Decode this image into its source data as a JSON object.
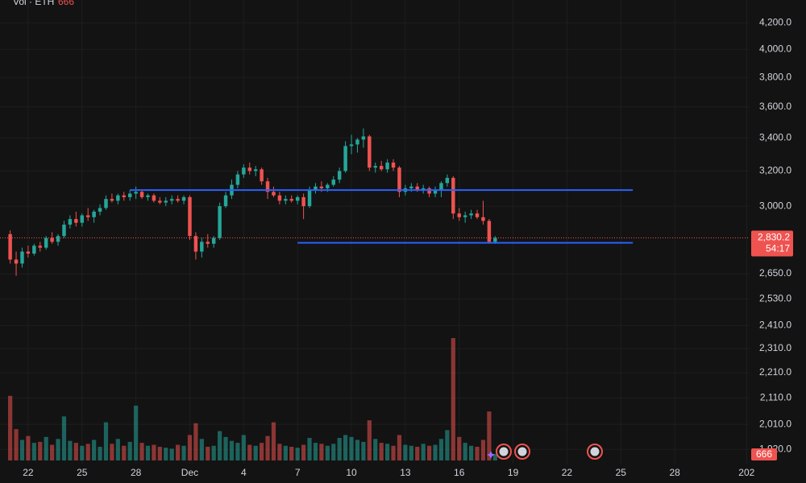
{
  "chart_data": {
    "type": "candlestick",
    "log_scale": true,
    "grid": true,
    "volume_title": "Vol · ETH",
    "up_color": "#26a69a",
    "down_color": "#ef5350",
    "x": [
      0,
      1,
      2,
      3,
      4,
      5,
      6,
      7,
      8,
      9,
      10,
      11,
      12,
      13,
      14,
      15,
      16,
      17,
      18,
      19,
      20,
      21,
      22,
      23,
      24,
      25,
      26,
      27,
      28,
      29,
      30,
      31,
      32,
      33,
      34,
      35,
      36,
      37,
      38,
      39,
      40,
      41,
      42,
      43,
      44,
      45,
      46,
      47,
      48,
      49,
      50,
      51,
      52,
      53,
      54,
      55,
      56,
      57,
      58,
      59,
      60,
      61,
      62,
      63,
      64,
      65,
      66,
      67,
      68,
      69,
      70,
      71,
      72,
      73,
      74,
      75,
      76,
      77,
      78,
      79,
      80,
      81
    ],
    "open": [
      2850,
      2720,
      2700,
      2760,
      2750,
      2790,
      2780,
      2830,
      2810,
      2840,
      2900,
      2930,
      2910,
      2950,
      2940,
      2970,
      2990,
      3040,
      3030,
      3060,
      3050,
      3070,
      3080,
      3050,
      3060,
      3030,
      3020,
      3030,
      3040,
      3030,
      3050,
      2840,
      2760,
      2810,
      2800,
      2830,
      3000,
      3060,
      3120,
      3180,
      3220,
      3200,
      3210,
      3140,
      3080,
      3060,
      3030,
      3040,
      3030,
      3050,
      3000,
      3090,
      3110,
      3100,
      3120,
      3150,
      3200,
      3350,
      3360,
      3390,
      3410,
      3220,
      3230,
      3210,
      3250,
      3220,
      3080,
      3100,
      3110,
      3090,
      3100,
      3070,
      3090,
      3130,
      3160,
      2960,
      2940,
      2950,
      2960,
      2940,
      2920,
      2810
    ],
    "high": [
      2870,
      2760,
      2780,
      2790,
      2800,
      2810,
      2840,
      2860,
      2850,
      2920,
      2950,
      2970,
      2960,
      2990,
      2980,
      3010,
      3060,
      3070,
      3070,
      3080,
      3090,
      3110,
      3090,
      3070,
      3070,
      3050,
      3050,
      3060,
      3060,
      3060,
      3060,
      2860,
      2830,
      2850,
      2840,
      3020,
      3080,
      3150,
      3200,
      3240,
      3250,
      3230,
      3220,
      3160,
      3110,
      3080,
      3060,
      3060,
      3060,
      3070,
      3110,
      3130,
      3140,
      3130,
      3170,
      3220,
      3380,
      3420,
      3400,
      3460,
      3420,
      3250,
      3260,
      3270,
      3270,
      3230,
      3120,
      3130,
      3130,
      3120,
      3110,
      3110,
      3140,
      3180,
      3170,
      2990,
      2970,
      2980,
      2980,
      3030,
      2930,
      2840
    ],
    "low": [
      2700,
      2640,
      2680,
      2730,
      2740,
      2760,
      2770,
      2800,
      2790,
      2830,
      2880,
      2890,
      2890,
      2920,
      2910,
      2950,
      2980,
      3020,
      3010,
      3030,
      3030,
      3040,
      3040,
      3030,
      3020,
      3010,
      3000,
      3010,
      3020,
      3010,
      2820,
      2720,
      2730,
      2780,
      2780,
      2820,
      2990,
      3040,
      3100,
      3160,
      3180,
      3170,
      3120,
      3040,
      3050,
      3010,
      3010,
      3020,
      3010,
      2930,
      2990,
      3070,
      3080,
      3080,
      3110,
      3130,
      3190,
      3300,
      3310,
      3340,
      3200,
      3190,
      3200,
      3190,
      3200,
      3050,
      3060,
      3080,
      3080,
      3070,
      3050,
      3050,
      3050,
      3110,
      2930,
      2920,
      2910,
      2930,
      2930,
      2900,
      2800,
      2800
    ],
    "close": [
      2720,
      2700,
      2760,
      2750,
      2790,
      2780,
      2830,
      2810,
      2840,
      2900,
      2930,
      2910,
      2950,
      2940,
      2970,
      2990,
      3040,
      3030,
      3060,
      3050,
      3070,
      3080,
      3050,
      3060,
      3030,
      3020,
      3030,
      3040,
      3030,
      3050,
      2840,
      2760,
      2810,
      2800,
      2830,
      3000,
      3060,
      3120,
      3180,
      3220,
      3200,
      3210,
      3140,
      3080,
      3060,
      3030,
      3040,
      3030,
      3050,
      3000,
      3090,
      3110,
      3100,
      3120,
      3150,
      3200,
      3350,
      3360,
      3390,
      3410,
      3220,
      3230,
      3210,
      3250,
      3220,
      3080,
      3100,
      3110,
      3090,
      3100,
      3070,
      3090,
      3130,
      3160,
      2960,
      2940,
      2950,
      2960,
      2940,
      2920,
      2810,
      2830.2
    ],
    "volume": [
      6600,
      3200,
      2100,
      2500,
      1800,
      1900,
      2400,
      1600,
      2200,
      4500,
      2000,
      1800,
      1500,
      1700,
      2100,
      1400,
      3900,
      1700,
      2200,
      1500,
      1900,
      5600,
      1800,
      1500,
      1600,
      1400,
      1300,
      1200,
      1600,
      1500,
      2600,
      3800,
      2200,
      1400,
      1500,
      3000,
      2400,
      2000,
      1800,
      2600,
      1600,
      1500,
      1800,
      2500,
      3900,
      1700,
      1500,
      1400,
      1300,
      1600,
      2300,
      1800,
      1700,
      1500,
      1700,
      2300,
      2600,
      2400,
      2100,
      1900,
      4100,
      2200,
      1800,
      1700,
      1500,
      2600,
      1600,
      1500,
      1400,
      1700,
      1500,
      1600,
      2200,
      3100,
      12500,
      2400,
      1800,
      1500,
      1400,
      2100,
      5000,
      666
    ],
    "levels": [
      {
        "value": 3090,
        "from": 20,
        "to": 104,
        "color": "#2962ff"
      },
      {
        "value": 2805,
        "from": 48,
        "to": 104,
        "color": "#2962ff"
      }
    ],
    "last_price": {
      "value": 2830.2,
      "label": "2,830.2"
    },
    "countdown": "54:17",
    "ylim": [
      1870,
      4380
    ],
    "yticks": [
      {
        "value": 1920,
        "label": "1,920.0"
      },
      {
        "value": 2010,
        "label": "2,010.0"
      },
      {
        "value": 2110,
        "label": "2,110.0"
      },
      {
        "value": 2210,
        "label": "2,210.0"
      },
      {
        "value": 2310,
        "label": "2,310.0"
      },
      {
        "value": 2410,
        "label": "2,410.0"
      },
      {
        "value": 2530,
        "label": "2,530.0"
      },
      {
        "value": 2650,
        "label": "2,650.0"
      },
      {
        "value": 3000,
        "label": "3,000.0"
      },
      {
        "value": 3200,
        "label": "3,200.0"
      },
      {
        "value": 3400,
        "label": "3,400.0"
      },
      {
        "value": 3600,
        "label": "3,600.0"
      },
      {
        "value": 3800,
        "label": "3,800.0"
      },
      {
        "value": 4000,
        "label": "4,000.0"
      },
      {
        "value": 4200,
        "label": "4,200.0"
      }
    ],
    "xlim": [
      -1.7,
      123.5
    ],
    "xticks": [
      {
        "value": 3,
        "label": "22"
      },
      {
        "value": 12,
        "label": "25"
      },
      {
        "value": 21,
        "label": "28"
      },
      {
        "value": 30,
        "label": "Dec"
      },
      {
        "value": 39,
        "label": "4"
      },
      {
        "value": 48,
        "label": "7"
      },
      {
        "value": 57,
        "label": "10"
      },
      {
        "value": 66,
        "label": "13"
      },
      {
        "value": 75,
        "label": "16"
      },
      {
        "value": 84,
        "label": "19"
      },
      {
        "value": 93,
        "label": "22"
      },
      {
        "value": 102,
        "label": "25"
      },
      {
        "value": 111,
        "label": "28"
      },
      {
        "value": 123,
        "label": "202"
      }
    ]
  }
}
